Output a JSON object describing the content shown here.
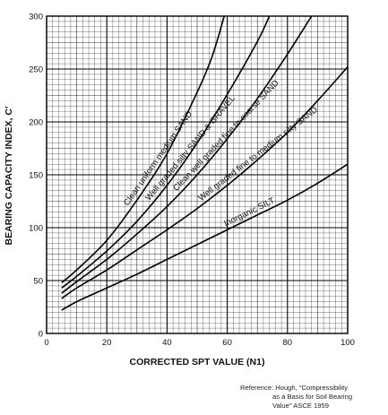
{
  "chart_data": {
    "type": "line",
    "xlabel": "CORRECTED SPT VALUE (N1)",
    "ylabel": "BEARING CAPACITY INDEX, C'",
    "xlim": [
      0,
      100
    ],
    "ylim": [
      0,
      300
    ],
    "x_ticks": [
      "0",
      "20",
      "40",
      "60",
      "80",
      "100"
    ],
    "y_ticks": [
      "0",
      "50",
      "100",
      "150",
      "200",
      "250",
      "300"
    ],
    "grid": true,
    "series": [
      {
        "name": "Clean uniform medium SAND",
        "x": [
          5,
          10,
          20,
          30,
          40,
          50,
          55,
          59
        ],
        "y": [
          48,
          60,
          88,
          126,
          170,
          228,
          262,
          300
        ]
      },
      {
        "name": "Well graded silty SAND & GRAVEL",
        "x": [
          5,
          10,
          20,
          30,
          40,
          50,
          60,
          70,
          74
        ],
        "y": [
          43,
          54,
          78,
          106,
          140,
          180,
          226,
          276,
          300
        ]
      },
      {
        "name": "Clean well graded fine to coarse SAND",
        "x": [
          5,
          10,
          20,
          30,
          40,
          50,
          60,
          70,
          80,
          88
        ],
        "y": [
          38,
          49,
          70,
          94,
          120,
          150,
          184,
          222,
          264,
          300
        ]
      },
      {
        "name": "Well graded fine to medium silty SAND",
        "x": [
          5,
          10,
          20,
          30,
          40,
          50,
          60,
          70,
          80,
          90,
          100
        ],
        "y": [
          33,
          43,
          60,
          79,
          98,
          118,
          140,
          164,
          190,
          220,
          252
        ]
      },
      {
        "name": "Inorganic SILT",
        "x": [
          5,
          10,
          20,
          30,
          40,
          50,
          60,
          70,
          80,
          90,
          100
        ],
        "y": [
          22,
          30,
          43,
          56,
          70,
          84,
          98,
          112,
          126,
          142,
          160
        ]
      }
    ]
  },
  "reference": {
    "line1": "Reference: Hough, \"Compressibility",
    "line2": "as a Basis for Soil Bearing",
    "line3": "Value\" ASCE 1959"
  }
}
